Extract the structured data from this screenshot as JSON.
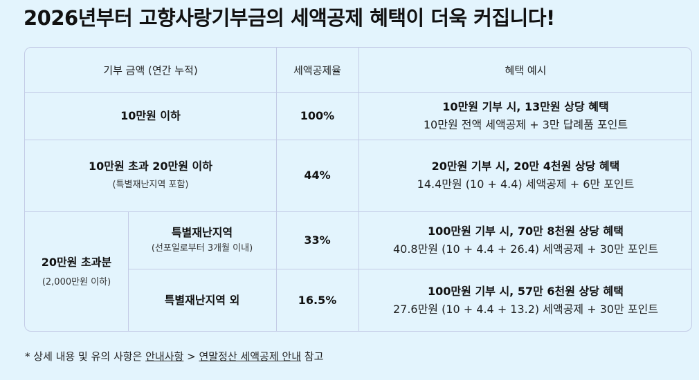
{
  "title": "2026년부터 고향사랑기부금의 세액공제 혜택이 더욱 커집니다!",
  "table": {
    "headers": [
      "기부 금액 (연간 누적)",
      "세액공제율",
      "혜택 예시"
    ],
    "rows": [
      {
        "amount": "10만원 이하",
        "rate": "100%",
        "example_title": "10만원 기부 시, 13만원 상당 혜택",
        "example_detail": "10만원 전액 세액공제 + 3만 답례품 포인트"
      },
      {
        "amount": "10만원 초과 20만원 이하",
        "amount_note": "(특별재난지역 포함)",
        "rate": "44%",
        "example_title": "20만원 기부 시, 20만 4천원 상당 혜택",
        "example_detail": "14.4만원 (10 + 4.4) 세액공제 + 6만 포인트"
      }
    ],
    "group": {
      "amount": "20만원 초과분",
      "amount_note": "(2,000만원 이하)",
      "subrows": [
        {
          "region": "특별재난지역",
          "region_note": "(선포일로부터 3개월 이내)",
          "rate": "33%",
          "example_title": "100만원 기부 시, 70만 8천원 상당 혜택",
          "example_detail": "40.8만원 (10 + 4.4 + 26.4) 세액공제 + 30만 포인트"
        },
        {
          "region": "특별재난지역 외",
          "rate": "16.5%",
          "example_title": "100만원 기부 시, 57만 6천원 상당 혜택",
          "example_detail": "27.6만원 (10 + 4.4 + 13.2) 세액공제 + 30만 포인트"
        }
      ]
    }
  },
  "footnote": {
    "prefix": "* 상세 내용 및 유의 사항은",
    "link1": "안내사항",
    "separator": ">",
    "link2": "연말정산 세액공제 안내",
    "suffix": "참고"
  }
}
